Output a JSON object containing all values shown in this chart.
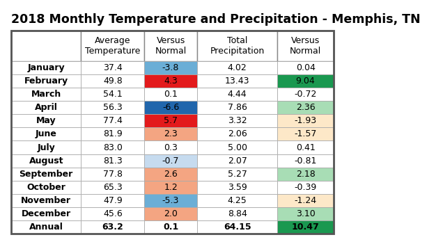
{
  "title": "2018 Monthly Temperature and Precipitation - Memphis, TN",
  "col_headers": [
    "",
    "Average\nTemperature",
    "Versus\nNormal",
    "Total\nPrecipitation",
    "Versus\nNormal"
  ],
  "rows": [
    {
      "month": "January",
      "avg_temp": "37.4",
      "vs_temp": "-3.8",
      "total_precip": "4.02",
      "vs_precip": "0.04"
    },
    {
      "month": "February",
      "avg_temp": "49.8",
      "vs_temp": "4.3",
      "total_precip": "13.43",
      "vs_precip": "9.04"
    },
    {
      "month": "March",
      "avg_temp": "54.1",
      "vs_temp": "0.1",
      "total_precip": "4.44",
      "vs_precip": "-0.72"
    },
    {
      "month": "April",
      "avg_temp": "56.3",
      "vs_temp": "-6.6",
      "total_precip": "7.86",
      "vs_precip": "2.36"
    },
    {
      "month": "May",
      "avg_temp": "77.4",
      "vs_temp": "5.7",
      "total_precip": "3.32",
      "vs_precip": "-1.93"
    },
    {
      "month": "June",
      "avg_temp": "81.9",
      "vs_temp": "2.3",
      "total_precip": "2.06",
      "vs_precip": "-1.57"
    },
    {
      "month": "July",
      "avg_temp": "83.0",
      "vs_temp": "0.3",
      "total_precip": "5.00",
      "vs_precip": "0.41"
    },
    {
      "month": "August",
      "avg_temp": "81.3",
      "vs_temp": "-0.7",
      "total_precip": "2.07",
      "vs_precip": "-0.81"
    },
    {
      "month": "September",
      "avg_temp": "77.8",
      "vs_temp": "2.6",
      "total_precip": "5.27",
      "vs_precip": "2.18"
    },
    {
      "month": "October",
      "avg_temp": "65.3",
      "vs_temp": "1.2",
      "total_precip": "3.59",
      "vs_precip": "-0.39"
    },
    {
      "month": "November",
      "avg_temp": "47.9",
      "vs_temp": "-5.3",
      "total_precip": "4.25",
      "vs_precip": "-1.24"
    },
    {
      "month": "December",
      "avg_temp": "45.6",
      "vs_temp": "2.0",
      "total_precip": "8.84",
      "vs_precip": "3.10"
    },
    {
      "month": "Annual",
      "avg_temp": "63.2",
      "vs_temp": "0.1",
      "total_precip": "64.15",
      "vs_precip": "10.47"
    }
  ],
  "vs_temp_colors": [
    "#6baed6",
    "#e31a1c",
    "#ffffff",
    "#2166ac",
    "#e31a1c",
    "#f4a582",
    "#ffffff",
    "#c6dbef",
    "#f4a582",
    "#f4a582",
    "#6baed6",
    "#f4a582",
    "#ffffff"
  ],
  "vs_precip_colors": [
    "#ffffff",
    "#1a9850",
    "#ffffff",
    "#a8ddb5",
    "#fde8c8",
    "#fde8c8",
    "#ffffff",
    "#ffffff",
    "#a8ddb5",
    "#ffffff",
    "#fde8c8",
    "#a8ddb5",
    "#1a9850"
  ],
  "background_color": "#ffffff",
  "title_color": "#000000",
  "title_fontsize": 12.5,
  "cell_fontsize": 9,
  "header_fontsize": 9,
  "border_color": "#888888",
  "inner_border_color": "#aaaaaa"
}
